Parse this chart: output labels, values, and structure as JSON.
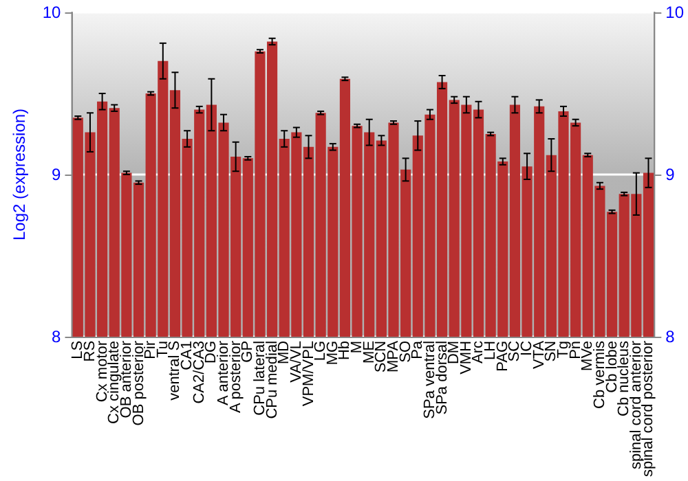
{
  "chart_data": {
    "type": "bar",
    "ylabel": "Log2 (expression)",
    "categories": [
      "LS",
      "RS",
      "Cx motor",
      "Cx cingulate",
      "OB anterior",
      "OB posterior",
      "Pir",
      "Tu",
      "ventral S",
      "CA1",
      "CA2/CA3",
      "DG",
      "A anterior",
      "A posterior",
      "GP",
      "CPu lateral",
      "CPu medial",
      "MD",
      "VA/VL",
      "VPM/VPL",
      "LG",
      "MG",
      "Hb",
      "M",
      "ME",
      "SCN",
      "MPA",
      "SO",
      "Pa",
      "SPa ventral",
      "SPa dorsal",
      "DM",
      "VMH",
      "Arc",
      "LH",
      "PAG",
      "SC",
      "IC",
      "VTA",
      "SN",
      "Tg",
      "Pn",
      "MVe",
      "Cb vermis",
      "Cb lobe",
      "Cb nucleus",
      "spinal cord anterior",
      "spinal cord posterior"
    ],
    "series": [
      {
        "color": "#b83030",
        "values": [
          9.35,
          9.26,
          9.45,
          9.41,
          9.01,
          8.95,
          9.5,
          9.7,
          9.52,
          9.22,
          9.4,
          9.43,
          9.32,
          9.11,
          9.1,
          9.76,
          9.82,
          9.22,
          9.26,
          9.17,
          9.38,
          9.17,
          9.59,
          9.3,
          9.26,
          9.21,
          9.32,
          9.03,
          9.24,
          9.37,
          9.57,
          9.46,
          9.43,
          9.4,
          9.25,
          9.08,
          9.43,
          9.05,
          9.42,
          9.12,
          9.39,
          9.32,
          9.12,
          8.93,
          8.77,
          8.88,
          8.88,
          9.01
        ],
        "errors": [
          0.01,
          0.12,
          0.05,
          0.02,
          0.01,
          0.01,
          0.01,
          0.11,
          0.11,
          0.05,
          0.02,
          0.16,
          0.05,
          0.09,
          0.01,
          0.01,
          0.02,
          0.05,
          0.03,
          0.07,
          0.01,
          0.02,
          0.01,
          0.01,
          0.08,
          0.03,
          0.01,
          0.07,
          0.09,
          0.03,
          0.04,
          0.02,
          0.05,
          0.05,
          0.01,
          0.02,
          0.05,
          0.08,
          0.04,
          0.1,
          0.03,
          0.02,
          0.01,
          0.02,
          0.01,
          0.01,
          0.13,
          0.09
        ]
      }
    ],
    "ylim": [
      8,
      10
    ],
    "yticks": [
      8,
      9,
      10
    ],
    "y2lim": [
      8,
      10
    ],
    "y2ticks": [
      8,
      9,
      10
    ],
    "grid": "y"
  }
}
